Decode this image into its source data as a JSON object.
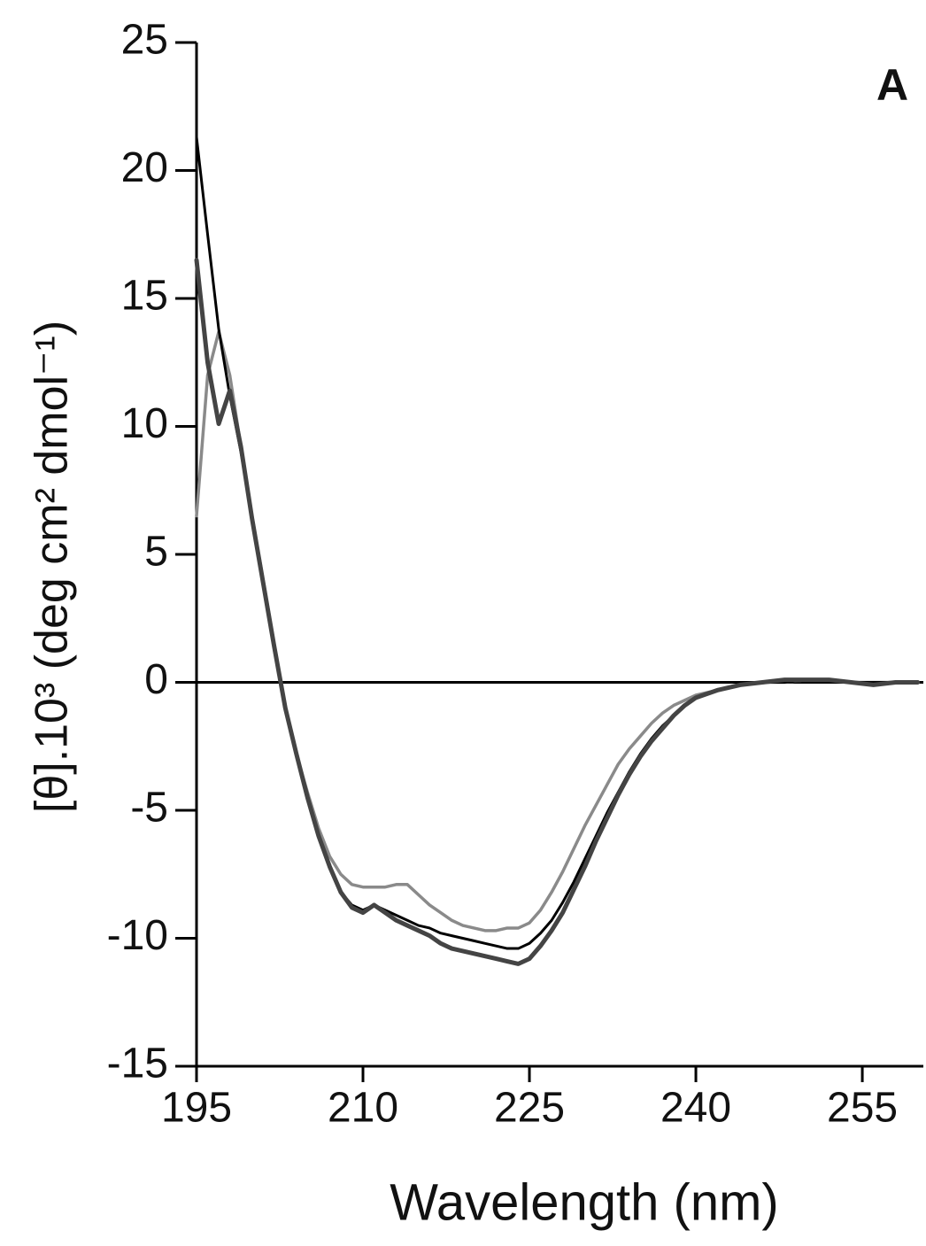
{
  "chart_data": {
    "type": "line",
    "panel_label": "A",
    "x_label": "Wavelength (nm)",
    "y_label": "[θ].10³ (deg cm² dmol⁻¹)",
    "x": [
      195,
      196,
      197,
      198,
      199,
      200,
      201,
      202,
      203,
      204,
      205,
      206,
      207,
      208,
      209,
      210,
      211,
      212,
      213,
      214,
      215,
      216,
      217,
      218,
      219,
      220,
      221,
      222,
      223,
      224,
      225,
      226,
      227,
      228,
      229,
      230,
      231,
      232,
      233,
      234,
      235,
      236,
      237,
      238,
      239,
      240,
      242,
      244,
      246,
      248,
      250,
      252,
      254,
      256,
      258,
      260
    ],
    "series": [
      {
        "color": "#8a8a8a",
        "values": [
          6.5,
          12.0,
          13.7,
          12.0,
          9.2,
          6.5,
          4.0,
          1.5,
          -1.0,
          -2.8,
          -4.3,
          -5.7,
          -6.8,
          -7.5,
          -7.9,
          -8.0,
          -8.0,
          -8.0,
          -7.9,
          -7.9,
          -8.3,
          -8.7,
          -9.0,
          -9.3,
          -9.5,
          -9.6,
          -9.7,
          -9.7,
          -9.6,
          -9.6,
          -9.4,
          -8.9,
          -8.2,
          -7.4,
          -6.5,
          -5.6,
          -4.8,
          -4.0,
          -3.2,
          -2.6,
          -2.1,
          -1.6,
          -1.2,
          -0.9,
          -0.7,
          -0.5,
          -0.3,
          -0.1,
          0,
          0,
          0.1,
          0.1,
          0,
          0,
          0,
          0
        ]
      },
      {
        "color": "#000000",
        "values": [
          21.3,
          17.5,
          13.8,
          11.2,
          9.0,
          6.5,
          4.0,
          1.4,
          -1.0,
          -2.8,
          -4.5,
          -6.0,
          -7.2,
          -8.2,
          -8.7,
          -8.9,
          -8.7,
          -8.9,
          -9.1,
          -9.3,
          -9.5,
          -9.6,
          -9.8,
          -9.9,
          -10.0,
          -10.1,
          -10.2,
          -10.3,
          -10.4,
          -10.4,
          -10.2,
          -9.8,
          -9.3,
          -8.6,
          -7.8,
          -6.9,
          -6.0,
          -5.1,
          -4.3,
          -3.5,
          -2.8,
          -2.2,
          -1.7,
          -1.3,
          -0.9,
          -0.6,
          -0.3,
          -0.1,
          0,
          0,
          0.1,
          0.1,
          0,
          0,
          0,
          0
        ]
      },
      {
        "color": "#444444",
        "values": [
          16.5,
          12.5,
          10.1,
          11.4,
          9.2,
          6.4,
          3.9,
          1.4,
          -1.0,
          -2.8,
          -4.5,
          -6.0,
          -7.2,
          -8.2,
          -8.8,
          -9.0,
          -8.7,
          -9.0,
          -9.3,
          -9.5,
          -9.7,
          -9.9,
          -10.2,
          -10.4,
          -10.5,
          -10.6,
          -10.7,
          -10.8,
          -10.9,
          -11.0,
          -10.8,
          -10.3,
          -9.7,
          -9.0,
          -8.1,
          -7.2,
          -6.2,
          -5.3,
          -4.4,
          -3.6,
          -2.9,
          -2.3,
          -1.8,
          -1.3,
          -0.9,
          -0.6,
          -0.3,
          -0.1,
          0,
          0.1,
          0.1,
          0.1,
          0,
          -0.1,
          0,
          0
        ]
      }
    ],
    "xlim": [
      195,
      260.5
    ],
    "ylim": [
      -15,
      25
    ],
    "xticks": [
      195,
      210,
      225,
      240,
      255
    ],
    "yticks": [
      -15,
      -10,
      -5,
      0,
      5,
      10,
      15,
      20,
      25
    ],
    "zero_line": true
  }
}
